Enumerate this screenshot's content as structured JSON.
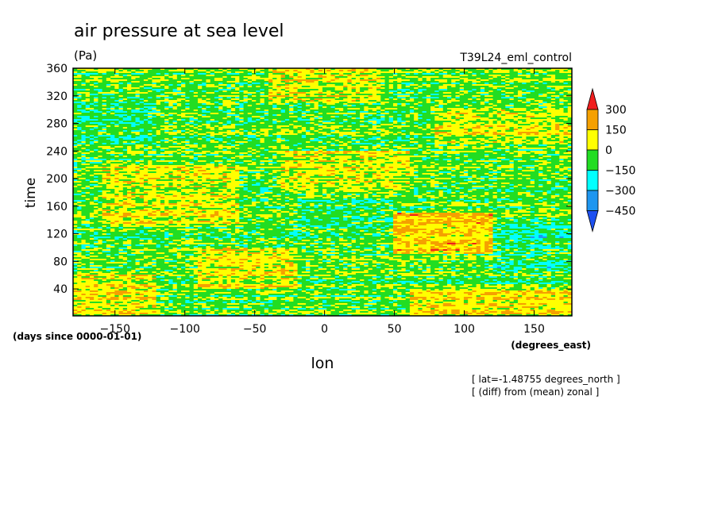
{
  "chart_data": {
    "type": "heatmap",
    "title": "air pressure at sea level",
    "units": "(Pa)",
    "experiment": "T39L24_eml_control",
    "xlabel": "lon",
    "xunits": "(degrees_east)",
    "ylabel": "time",
    "yunits": "(days since 0000-01-01)",
    "xlim": [
      -180,
      177
    ],
    "ylim": [
      1,
      360
    ],
    "xticks": [
      -150,
      -100,
      -50,
      0,
      50,
      100,
      150
    ],
    "yticks": [
      40,
      80,
      120,
      160,
      200,
      240,
      280,
      320,
      360
    ],
    "grid": false,
    "notes": [
      "[ lat=-1.48755 degrees_north ]",
      "[ (diff) from (mean) zonal ]"
    ],
    "colorbar": {
      "orientation": "vertical",
      "position": "right",
      "tick_labels": [
        "300",
        "150",
        "0",
        "-150",
        "-300",
        "-450"
      ],
      "levels": [
        {
          "max": 300,
          "color": "#f01e1e"
        },
        {
          "min": 150,
          "max": 300,
          "color": "#f5a000"
        },
        {
          "min": 0,
          "max": 150,
          "color": "#ffff00"
        },
        {
          "min": -150,
          "max": 0,
          "color": "#22dd22"
        },
        {
          "min": -300,
          "max": -150,
          "color": "#00ffff"
        },
        {
          "min": -450,
          "max": -300,
          "color": "#1e96f0"
        },
        {
          "max": -450,
          "color": "#1e50f0"
        }
      ]
    },
    "field_regions": [
      {
        "lon": [
          -180,
          177
        ],
        "time": [
          1,
          360
        ],
        "value": -50
      },
      {
        "lon": [
          -180,
          -120
        ],
        "time": [
          1,
          60
        ],
        "value": 80
      },
      {
        "lon": [
          -160,
          -60
        ],
        "time": [
          130,
          220
        ],
        "value": 60
      },
      {
        "lon": [
          -90,
          -20
        ],
        "time": [
          40,
          100
        ],
        "value": 70
      },
      {
        "lon": [
          -40,
          40
        ],
        "time": [
          310,
          360
        ],
        "value": 60
      },
      {
        "lon": [
          -30,
          60
        ],
        "time": [
          180,
          240
        ],
        "value": 50
      },
      {
        "lon": [
          50,
          120
        ],
        "time": [
          90,
          150
        ],
        "value": 150
      },
      {
        "lon": [
          60,
          177
        ],
        "time": [
          1,
          40
        ],
        "value": 100
      },
      {
        "lon": [
          80,
          177
        ],
        "time": [
          250,
          300
        ],
        "value": 60
      },
      {
        "lon": [
          -180,
          -120
        ],
        "time": [
          250,
          320
        ],
        "value": -100
      },
      {
        "lon": [
          120,
          177
        ],
        "time": [
          60,
          140
        ],
        "value": -120
      },
      {
        "lon": [
          -20,
          50
        ],
        "time": [
          130,
          170
        ],
        "value": -120
      }
    ]
  }
}
